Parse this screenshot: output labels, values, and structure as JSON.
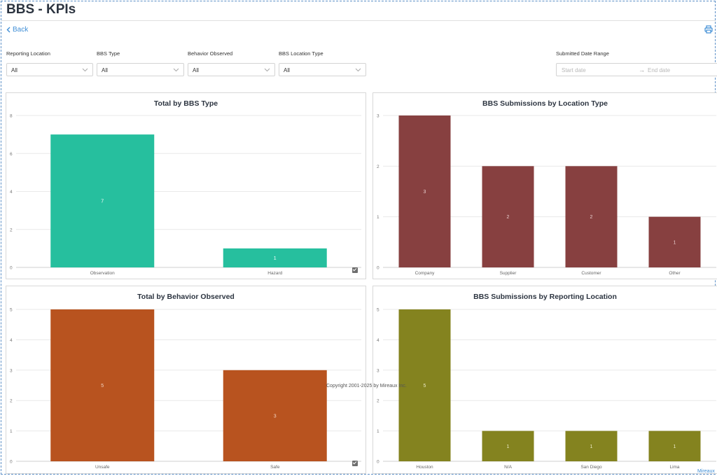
{
  "page": {
    "title": "BBS - KPIs",
    "back_label": "Back",
    "copyright": "Copyright 2001-2025 by Mireaux Inc.",
    "brand": "Mireaux"
  },
  "filters": [
    {
      "label": "Reporting Location",
      "value": "All"
    },
    {
      "label": "BBS Type",
      "value": "All"
    },
    {
      "label": "Behavior Observed",
      "value": "All"
    },
    {
      "label": "BBS Location Type",
      "value": "All"
    }
  ],
  "date_range": {
    "label": "Submitted Date Range",
    "start_placeholder": "Start date",
    "end_placeholder": "End date"
  },
  "icons": {
    "back": "chevron-left-icon",
    "print": "printer-icon",
    "dropdown": "chevron-down-icon",
    "toggle": "checkbox-icon"
  },
  "colors": {
    "accent": "#3f8ed6"
  },
  "chart_data": [
    {
      "type": "bar",
      "title": "Total by BBS Type",
      "categories": [
        "Observation",
        "Hazard"
      ],
      "values": [
        7,
        1
      ],
      "ylim": [
        0,
        8
      ],
      "yticks": [
        0,
        2,
        4,
        6,
        8
      ],
      "color": "#26bf9e",
      "label_color": "#ffffff",
      "grid": true
    },
    {
      "type": "bar",
      "title": "BBS Submissions by Location Type",
      "categories": [
        "Company",
        "Supplier",
        "Customer",
        "Other"
      ],
      "values": [
        3,
        2,
        2,
        1
      ],
      "ylim": [
        0,
        3
      ],
      "yticks": [
        0,
        1,
        2,
        3
      ],
      "color": "#874040",
      "label_color": "#e8cfcf",
      "grid": true
    },
    {
      "type": "bar",
      "title": "Total by Behavior Observed",
      "categories": [
        "Unsafe",
        "Safe"
      ],
      "values": [
        5,
        3
      ],
      "ylim": [
        0,
        5
      ],
      "yticks": [
        0,
        1,
        2,
        3,
        4,
        5
      ],
      "color": "#b8531f",
      "label_color": "#f3d6c4",
      "grid": true
    },
    {
      "type": "bar",
      "title": "BBS Submissions by Reporting Location",
      "categories": [
        "Houston",
        "N/A",
        "San Diego",
        "Lima"
      ],
      "values": [
        5,
        1,
        1,
        1
      ],
      "ylim": [
        0,
        5
      ],
      "yticks": [
        0,
        1,
        2,
        3,
        4,
        5
      ],
      "color": "#84831f",
      "label_color": "#ecebc6",
      "grid": true
    }
  ]
}
